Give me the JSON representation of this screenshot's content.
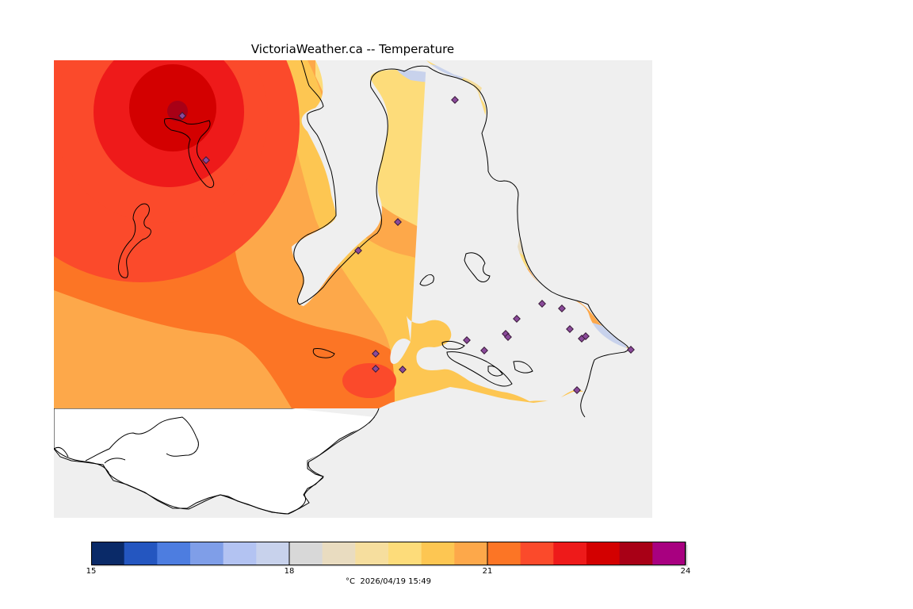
{
  "title": "VictoriaWeather.ca -- Temperature",
  "legend": {
    "min": 15,
    "max": 24,
    "tick_labels": [
      "15",
      "18",
      "21",
      "24"
    ],
    "ticks": [
      15,
      18,
      21,
      24
    ],
    "unit": "°C",
    "timestamp": "2026/04/19 15:49",
    "colors": [
      "#0a2a68",
      "#2456c0",
      "#4d7de0",
      "#7f9ee8",
      "#b3c3f2",
      "#c8d2ec",
      "#d8d8d8",
      "#e9dcc0",
      "#f6de9e",
      "#fddc7a",
      "#fdc652",
      "#fda84a",
      "#fc7525",
      "#fb4a2b",
      "#ee1a1a",
      "#d30000",
      "#a80016",
      "#a80080"
    ]
  },
  "colors": {
    "water": "#efefef",
    "land_unshaded": "#ffffff",
    "coastline": "#000000",
    "station_marker": "#8a4a9a"
  },
  "icons": {
    "station": "diamond-marker"
  }
}
